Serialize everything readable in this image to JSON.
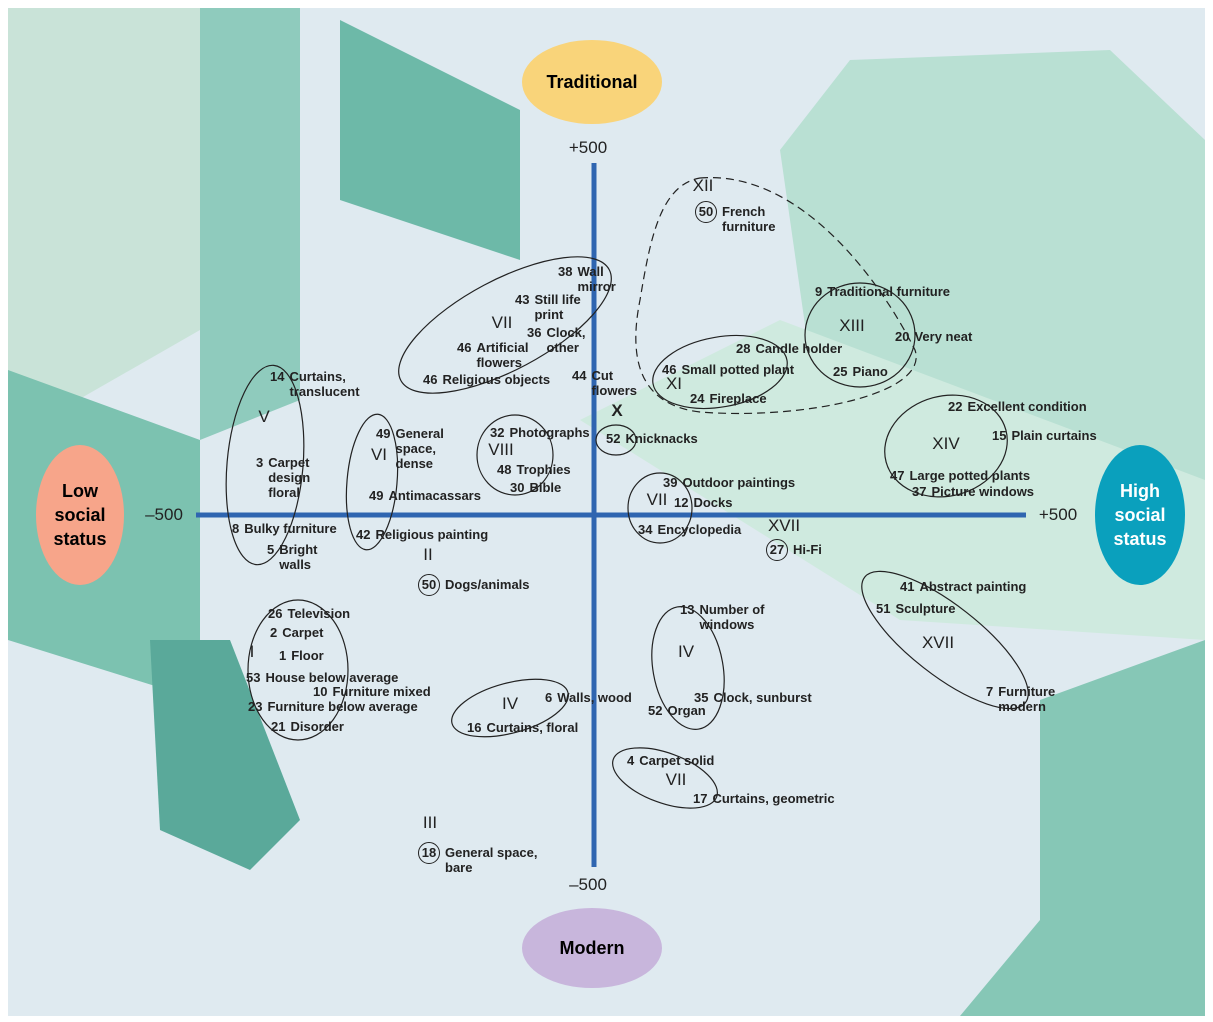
{
  "axes": {
    "top": "Traditional",
    "bottom": "Modern",
    "left": "Low social status",
    "right": "High social status",
    "top_tick": "+500",
    "bottom_tick": "–500",
    "left_tick": "–500",
    "right_tick": "+500"
  },
  "groups": [
    {
      "numeral": "XII",
      "items": [
        {
          "num": 50,
          "label": "French furniture"
        }
      ]
    },
    {
      "numeral": "VII",
      "items": [
        {
          "num": 38,
          "label": "Wall mirror"
        },
        {
          "num": 43,
          "label": "Still life print"
        },
        {
          "num": 36,
          "label": "Clock, other"
        },
        {
          "num": 46,
          "label": "Artificial flowers"
        },
        {
          "num": 46,
          "label": "Religious objects"
        },
        {
          "num": 44,
          "label": "Cut flowers"
        }
      ]
    },
    {
      "numeral": "XIII",
      "items": [
        {
          "num": 9,
          "label": "Traditional furniture"
        },
        {
          "num": 20,
          "label": "Very neat"
        },
        {
          "num": 25,
          "label": "Piano"
        }
      ]
    },
    {
      "numeral": "XI",
      "items": [
        {
          "num": 28,
          "label": "Candle holder"
        },
        {
          "num": 46,
          "label": "Small potted plant"
        },
        {
          "num": 24,
          "label": "Fireplace"
        }
      ]
    },
    {
      "numeral": "X",
      "items": [
        {
          "num": 52,
          "label": "Knicknacks"
        }
      ]
    },
    {
      "numeral": "V",
      "items": [
        {
          "num": 14,
          "label": "Curtains, translucent"
        },
        {
          "num": 3,
          "label": "Carpet design floral"
        },
        {
          "num": 8,
          "label": "Bulky furniture"
        },
        {
          "num": 5,
          "label": "Bright walls"
        }
      ]
    },
    {
      "numeral": "VI",
      "items": [
        {
          "num": 49,
          "label": "General space, dense"
        },
        {
          "num": 49,
          "label": "Antimacassars"
        },
        {
          "num": 42,
          "label": "Religious painting"
        }
      ]
    },
    {
      "numeral": "VIII",
      "items": [
        {
          "num": 32,
          "label": "Photographs"
        },
        {
          "num": 48,
          "label": "Trophies"
        },
        {
          "num": 30,
          "label": "Bible"
        }
      ]
    },
    {
      "numeral": "XIV",
      "items": [
        {
          "num": 22,
          "label": "Excellent condition"
        },
        {
          "num": 15,
          "label": "Plain curtains"
        },
        {
          "num": 47,
          "label": "Large potted plants"
        },
        {
          "num": 37,
          "label": "Picture windows"
        }
      ]
    },
    {
      "numeral": "VII",
      "items": [
        {
          "num": 39,
          "label": "Outdoor paintings"
        },
        {
          "num": 12,
          "label": "Docks"
        },
        {
          "num": 34,
          "label": "Encyclopedia"
        }
      ]
    },
    {
      "numeral": "XVII",
      "items": [
        {
          "num": 27,
          "label": "Hi-Fi"
        }
      ]
    },
    {
      "numeral": "II",
      "items": [
        {
          "num": 50,
          "label": "Dogs/animals"
        }
      ]
    },
    {
      "numeral": "XVII",
      "items": [
        {
          "num": 41,
          "label": "Abstract painting"
        },
        {
          "num": 51,
          "label": "Sculpture"
        },
        {
          "num": 7,
          "label": "Furniture modern"
        }
      ]
    },
    {
      "numeral": "I",
      "items": [
        {
          "num": 26,
          "label": "Television"
        },
        {
          "num": 2,
          "label": "Carpet"
        },
        {
          "num": 1,
          "label": "Floor"
        },
        {
          "num": 53,
          "label": "House below average"
        },
        {
          "num": 10,
          "label": "Furniture mixed"
        },
        {
          "num": 23,
          "label": "Furniture below average"
        },
        {
          "num": 21,
          "label": "Disorder"
        }
      ]
    },
    {
      "numeral": "IV",
      "items": [
        {
          "num": 13,
          "label": "Number of windows"
        },
        {
          "num": 35,
          "label": "Clock, sunburst"
        },
        {
          "num": 52,
          "label": "Organ"
        }
      ]
    },
    {
      "numeral": "IV",
      "items": [
        {
          "num": 6,
          "label": "Walls, wood"
        },
        {
          "num": 16,
          "label": "Curtains, floral"
        }
      ]
    },
    {
      "numeral": "VII",
      "items": [
        {
          "num": 4,
          "label": "Carpet solid"
        },
        {
          "num": 17,
          "label": "Curtains, geometric"
        }
      ]
    },
    {
      "numeral": "III",
      "items": [
        {
          "num": 18,
          "label": "General space, bare"
        }
      ]
    }
  ]
}
